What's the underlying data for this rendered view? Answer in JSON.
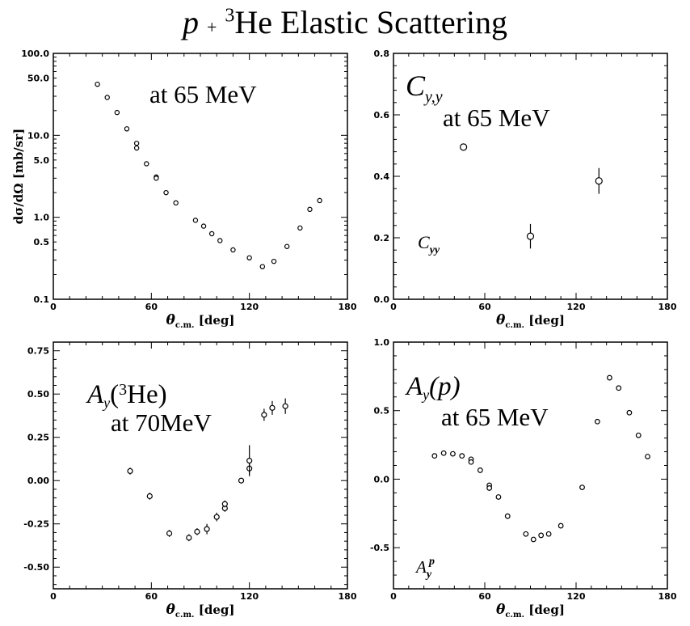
{
  "title": {
    "prefix": "p",
    "plus": "+",
    "sup": "3",
    "rest": "He Elastic Scattering"
  },
  "chart_data": [
    {
      "type": "scatter",
      "name": "cross-section",
      "ylabel": "dσ/dΩ [mb/sr]",
      "xlabel": "θc.m. [deg]",
      "yscale": "log",
      "xlim": [
        0,
        180
      ],
      "ylim": [
        0.1,
        100
      ],
      "xticks": [
        "0",
        "60",
        "120",
        "180"
      ],
      "yticks": [
        "0.1",
        "0.5",
        "1.0",
        "5.0",
        "10.0",
        "50.0",
        "100.0"
      ],
      "annotation": "at 65 MeV",
      "points": [
        {
          "x": 27,
          "y": 42
        },
        {
          "x": 33,
          "y": 29
        },
        {
          "x": 39,
          "y": 19
        },
        {
          "x": 45,
          "y": 12
        },
        {
          "x": 51,
          "y": 8
        },
        {
          "x": 51,
          "y": 7
        },
        {
          "x": 57,
          "y": 4.5
        },
        {
          "x": 63,
          "y": 3.1
        },
        {
          "x": 63,
          "y": 3.0
        },
        {
          "x": 69,
          "y": 2.0
        },
        {
          "x": 75,
          "y": 1.5
        },
        {
          "x": 87,
          "y": 0.92
        },
        {
          "x": 92,
          "y": 0.78
        },
        {
          "x": 97,
          "y": 0.63
        },
        {
          "x": 102,
          "y": 0.52
        },
        {
          "x": 110,
          "y": 0.4
        },
        {
          "x": 120,
          "y": 0.32
        },
        {
          "x": 128,
          "y": 0.25
        },
        {
          "x": 135,
          "y": 0.29
        },
        {
          "x": 143,
          "y": 0.44
        },
        {
          "x": 151,
          "y": 0.74
        },
        {
          "x": 157,
          "y": 1.25
        },
        {
          "x": 163,
          "y": 1.6
        }
      ]
    },
    {
      "type": "scatter",
      "name": "Cyy",
      "ylabel": "",
      "xlabel": "θc.m. [deg]",
      "xlim": [
        0,
        180
      ],
      "ylim": [
        0,
        0.8
      ],
      "xticks": [
        "0",
        "60",
        "120",
        "180"
      ],
      "yticks": [
        "0.0",
        "0.2",
        "0.4",
        "0.6",
        "0.8"
      ],
      "annotation_title": "Cy,y",
      "annotation": "at 65 MeV",
      "series_label": "Cyy",
      "points": [
        {
          "x": 46,
          "y": 0.495,
          "err": 0.008
        },
        {
          "x": 90,
          "y": 0.205,
          "err": 0.04
        },
        {
          "x": 135,
          "y": 0.385,
          "err": 0.042
        }
      ]
    },
    {
      "type": "scatter",
      "name": "Ay-3He",
      "ylabel": "",
      "xlabel": "θc.m. [deg]",
      "xlim": [
        0,
        180
      ],
      "ylim": [
        -0.625,
        0.8
      ],
      "xticks": [
        "0",
        "60",
        "120",
        "180"
      ],
      "yticks": [
        "-0.50",
        "-0.25",
        "0.00",
        "0.25",
        "0.50",
        "0.75"
      ],
      "annotation_title_a": "A",
      "annotation_title_sub": "y",
      "annotation_title_open": "(",
      "annotation_title_sup": "3",
      "annotation_title_close": "He)",
      "annotation": "at 70MeV",
      "points": [
        {
          "x": 47,
          "y": 0.055,
          "err": 0.02
        },
        {
          "x": 59,
          "y": -0.09,
          "err": 0.02
        },
        {
          "x": 71,
          "y": -0.305,
          "err": 0.02
        },
        {
          "x": 83,
          "y": -0.33,
          "err": 0.02
        },
        {
          "x": 88,
          "y": -0.295,
          "err": 0.02
        },
        {
          "x": 94,
          "y": -0.28,
          "err": 0.03
        },
        {
          "x": 100,
          "y": -0.21,
          "err": 0.025
        },
        {
          "x": 105,
          "y": -0.16,
          "err": 0.02
        },
        {
          "x": 105,
          "y": -0.135,
          "err": 0.02
        },
        {
          "x": 115,
          "y": 0.0,
          "err": 0.015
        },
        {
          "x": 120,
          "y": 0.07,
          "err": 0.03
        },
        {
          "x": 120,
          "y": 0.115,
          "err": 0.09
        },
        {
          "x": 129,
          "y": 0.38,
          "err": 0.035
        },
        {
          "x": 134,
          "y": 0.42,
          "err": 0.04
        },
        {
          "x": 142,
          "y": 0.43,
          "err": 0.045
        }
      ]
    },
    {
      "type": "scatter",
      "name": "Ay-p",
      "ylabel": "",
      "xlabel": "θc.m. [deg]",
      "xlim": [
        0,
        180
      ],
      "ylim": [
        -0.8,
        1.0
      ],
      "xticks": [
        "0",
        "60",
        "120",
        "180"
      ],
      "yticks": [
        "-0.5",
        "0.0",
        "0.5",
        "1.0"
      ],
      "annotation_title_a": "A",
      "annotation_title_sub": "y",
      "annotation_title_rest": "(p)",
      "annotation": "at 65 MeV",
      "series_label_a": "A",
      "series_label_sub": "y",
      "series_label_sup": "p",
      "points": [
        {
          "x": 27,
          "y": 0.17
        },
        {
          "x": 33,
          "y": 0.19
        },
        {
          "x": 39,
          "y": 0.185
        },
        {
          "x": 45,
          "y": 0.17
        },
        {
          "x": 51,
          "y": 0.145
        },
        {
          "x": 51,
          "y": 0.125
        },
        {
          "x": 57,
          "y": 0.065
        },
        {
          "x": 63,
          "y": -0.045
        },
        {
          "x": 63,
          "y": -0.065
        },
        {
          "x": 69,
          "y": -0.13
        },
        {
          "x": 75,
          "y": -0.27
        },
        {
          "x": 87,
          "y": -0.4
        },
        {
          "x": 92,
          "y": -0.44
        },
        {
          "x": 97,
          "y": -0.41
        },
        {
          "x": 102,
          "y": -0.4
        },
        {
          "x": 110,
          "y": -0.34
        },
        {
          "x": 124,
          "y": -0.06
        },
        {
          "x": 134,
          "y": 0.42
        },
        {
          "x": 142,
          "y": 0.74
        },
        {
          "x": 148,
          "y": 0.665
        },
        {
          "x": 155,
          "y": 0.485
        },
        {
          "x": 161,
          "y": 0.32
        },
        {
          "x": 167,
          "y": 0.165
        }
      ]
    }
  ]
}
